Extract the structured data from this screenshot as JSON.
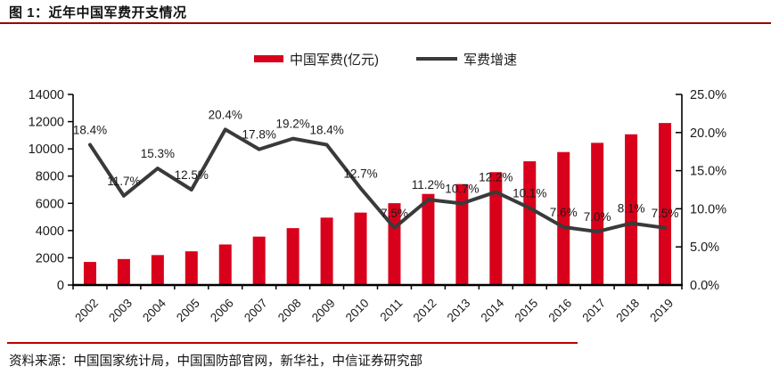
{
  "page": {
    "title": "图 1：近年中国军费开支情况",
    "source": "资料来源：中国国家统计局，中国国防部官网，新华社，中信证券研究部"
  },
  "colors": {
    "bar": "#D9001B",
    "line": "#3A3A3A",
    "axis": "#000000",
    "text": "#1A1A1A",
    "title_rule": "#990000",
    "footer_rule": "#C00000"
  },
  "chart_data": {
    "type": "combo",
    "title": "近年中国军费开支情况",
    "categories": [
      "2002",
      "2003",
      "2004",
      "2005",
      "2006",
      "2007",
      "2008",
      "2009",
      "2010",
      "2011",
      "2012",
      "2013",
      "2014",
      "2015",
      "2016",
      "2017",
      "2018",
      "2019"
    ],
    "series": [
      {
        "name": "中国军费(亿元)",
        "type": "bar",
        "axis": "left",
        "values": [
          1694,
          1908,
          2200,
          2475,
          2979,
          3555,
          4178,
          4951,
          5321,
          6011,
          6691,
          7411,
          8290,
          9088,
          9766,
          10443,
          11070,
          11899
        ]
      },
      {
        "name": "军费增速",
        "type": "line",
        "axis": "right",
        "values": [
          18.4,
          11.7,
          15.3,
          12.5,
          20.4,
          17.8,
          19.2,
          18.4,
          12.7,
          7.5,
          11.2,
          10.7,
          12.2,
          10.1,
          7.6,
          7.0,
          8.1,
          7.5
        ],
        "point_labels": [
          "18.4%",
          "11.7%",
          "15.3%",
          "12.5%",
          "20.4%",
          "17.8%",
          "19.2%",
          "18.4%",
          "12.7%",
          "7.5%",
          "11.2%",
          "10.7%",
          "12.2%",
          "10.1%",
          "7.6%",
          "7.0%",
          "8.1%",
          "7.5%"
        ]
      }
    ],
    "left_axis": {
      "min": 0,
      "max": 14000,
      "step": 2000,
      "tick_labels": [
        "0",
        "2000",
        "4000",
        "6000",
        "8000",
        "10000",
        "12000",
        "14000"
      ]
    },
    "right_axis": {
      "min": 0,
      "max": 25,
      "step": 5,
      "tick_labels": [
        "0.0%",
        "5.0%",
        "10.0%",
        "15.0%",
        "20.0%",
        "25.0%"
      ]
    },
    "grid": false,
    "legend_position": "top-center"
  }
}
